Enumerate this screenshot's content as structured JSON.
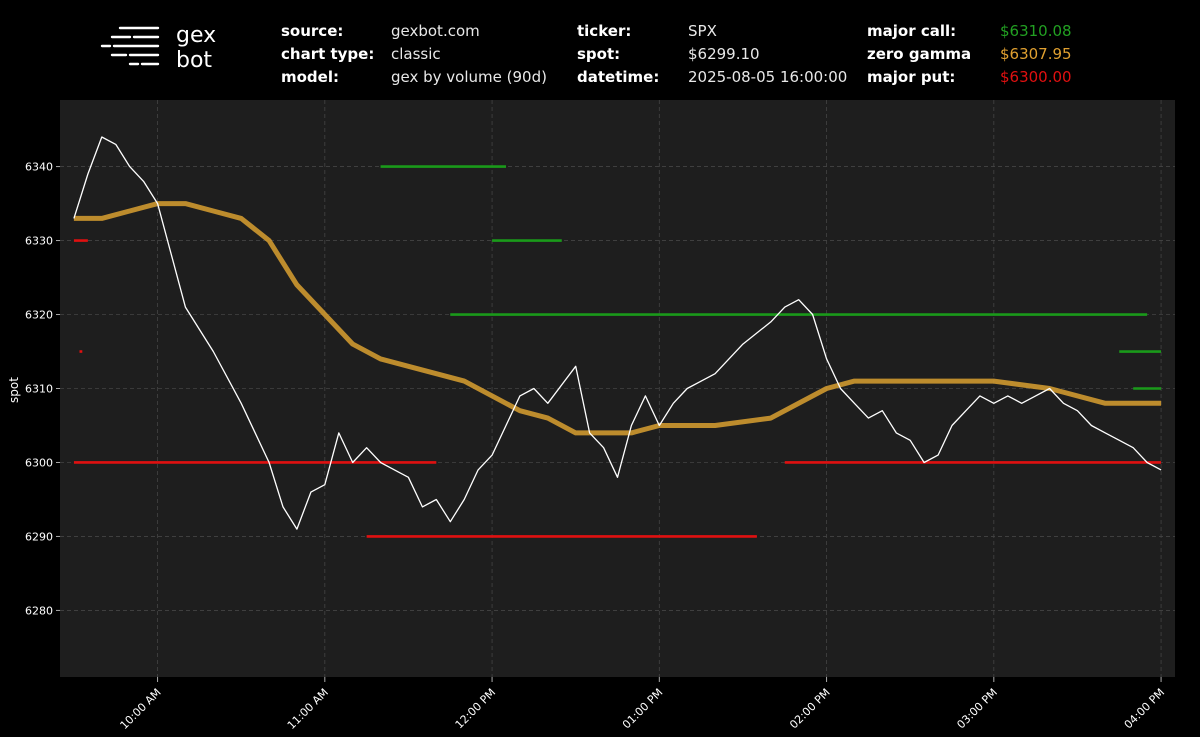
{
  "logo": {
    "line1": "gex",
    "line2": "bot"
  },
  "header": {
    "col1": [
      {
        "key": "source:",
        "value": "gexbot.com"
      },
      {
        "key": "chart type:",
        "value": "classic"
      },
      {
        "key": "model:",
        "value": "gex by volume (90d)"
      }
    ],
    "col2": [
      {
        "key": "ticker:",
        "value": "SPX"
      },
      {
        "key": "spot:",
        "value": "$6299.10"
      },
      {
        "key": "datetime:",
        "value": "2025-08-05 16:00:00"
      }
    ],
    "col3": [
      {
        "key": "major call:",
        "value": "$6310.08",
        "color": "#22a022"
      },
      {
        "key": "zero gamma",
        "value": "$6307.95",
        "color": "#e0a030"
      },
      {
        "key": "major put:",
        "value": "$6300.00",
        "color": "#e01010"
      }
    ]
  },
  "chart_data": {
    "type": "line",
    "ylabel": "spot",
    "xlabel": "",
    "ylim": [
      6271,
      6349
    ],
    "yticks": [
      6280,
      6290,
      6300,
      6310,
      6320,
      6330,
      6340
    ],
    "xlim": [
      "09:25",
      "16:05"
    ],
    "xticks": [
      "10:00 AM",
      "11:00 AM",
      "12:00 PM",
      "01:00 PM",
      "02:00 PM",
      "03:00 PM",
      "04:00 PM"
    ],
    "grid": true,
    "colors": {
      "spot": "#ffffff",
      "zero_gamma": "#d9a030",
      "call": "#1a9a1a",
      "put": "#e01010",
      "plot_bg": "#1e1e1e"
    },
    "series": [
      {
        "key": "spot",
        "x": [
          "09:30",
          "09:35",
          "09:40",
          "09:45",
          "09:50",
          "09:55",
          "10:00",
          "10:05",
          "10:10",
          "10:20",
          "10:30",
          "10:40",
          "10:45",
          "10:50",
          "10:55",
          "11:00",
          "11:05",
          "11:10",
          "11:15",
          "11:20",
          "11:25",
          "11:30",
          "11:35",
          "11:40",
          "11:45",
          "11:50",
          "11:55",
          "12:00",
          "12:05",
          "12:10",
          "12:15",
          "12:20",
          "12:30",
          "12:35",
          "12:40",
          "12:45",
          "12:50",
          "12:55",
          "13:00",
          "13:05",
          "13:10",
          "13:20",
          "13:30",
          "13:40",
          "13:45",
          "13:50",
          "13:55",
          "14:00",
          "14:05",
          "14:10",
          "14:15",
          "14:20",
          "14:25",
          "14:30",
          "14:35",
          "14:40",
          "14:45",
          "14:50",
          "14:55",
          "15:00",
          "15:05",
          "15:10",
          "15:15",
          "15:20",
          "15:25",
          "15:30",
          "15:35",
          "15:40",
          "15:45",
          "15:50",
          "15:55",
          "16:00"
        ],
        "y": [
          6333,
          6339,
          6344,
          6343,
          6340,
          6338,
          6335,
          6328,
          6321,
          6315,
          6308,
          6300,
          6294,
          6291,
          6296,
          6297,
          6304,
          6300,
          6302,
          6300,
          6299,
          6298,
          6294,
          6295,
          6292,
          6295,
          6299,
          6301,
          6305,
          6309,
          6310,
          6308,
          6313,
          6304,
          6302,
          6298,
          6305,
          6309,
          6305,
          6308,
          6310,
          6312,
          6316,
          6319,
          6321,
          6322,
          6320,
          6314,
          6310,
          6308,
          6306,
          6307,
          6304,
          6303,
          6300,
          6301,
          6305,
          6307,
          6309,
          6308,
          6309,
          6308,
          6309,
          6310,
          6308,
          6307,
          6305,
          6304,
          6303,
          6302,
          6300,
          6299
        ]
      },
      {
        "key": "zero_gamma",
        "x": [
          "09:30",
          "09:40",
          "09:50",
          "10:00",
          "10:10",
          "10:20",
          "10:30",
          "10:40",
          "10:50",
          "11:00",
          "11:10",
          "11:20",
          "11:30",
          "11:40",
          "11:50",
          "12:00",
          "12:10",
          "12:20",
          "12:30",
          "12:40",
          "12:50",
          "13:00",
          "13:20",
          "13:40",
          "14:00",
          "14:10",
          "14:20",
          "14:30",
          "14:40",
          "15:00",
          "15:20",
          "15:40",
          "16:00"
        ],
        "y": [
          6333,
          6333,
          6334,
          6335,
          6335,
          6334,
          6333,
          6330,
          6324,
          6320,
          6316,
          6314,
          6313,
          6312,
          6311,
          6309,
          6307,
          6306,
          6304,
          6304,
          6304,
          6305,
          6305,
          6306,
          6310,
          6311,
          6311,
          6311,
          6311,
          6311,
          6310,
          6308,
          6308
        ]
      },
      {
        "key": "call",
        "segments": [
          {
            "x": [
              "11:20",
              "12:05"
            ],
            "y": 6340
          },
          {
            "x": [
              "12:00",
              "12:25"
            ],
            "y": 6330
          },
          {
            "x": [
              "11:45",
              "15:55"
            ],
            "y": 6320
          },
          {
            "x": [
              "15:45",
              "16:00"
            ],
            "y": 6315
          },
          {
            "x": [
              "15:50",
              "16:00"
            ],
            "y": 6310
          }
        ]
      },
      {
        "key": "put",
        "segments": [
          {
            "x": [
              "09:30",
              "09:35"
            ],
            "y": 6330
          },
          {
            "x": [
              "09:30",
              "11:40"
            ],
            "y": 6300
          },
          {
            "x": [
              "11:15",
              "13:35"
            ],
            "y": 6290
          },
          {
            "x": [
              "13:45",
              "16:00"
            ],
            "y": 6300
          },
          {
            "x": [
              "09:32",
              "09:33"
            ],
            "y": 6315
          }
        ]
      }
    ]
  }
}
